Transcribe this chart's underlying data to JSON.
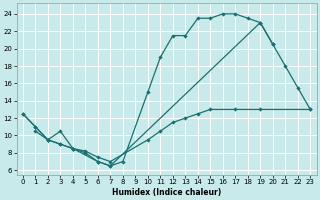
{
  "xlabel": "Humidex (Indice chaleur)",
  "bg_color": "#c8eaea",
  "grid_color": "#ffffff",
  "line_color": "#1a7070",
  "xlim": [
    -0.5,
    23.5
  ],
  "ylim": [
    5.5,
    25.2
  ],
  "xticks": [
    0,
    1,
    2,
    3,
    4,
    5,
    6,
    7,
    8,
    9,
    10,
    11,
    12,
    13,
    14,
    15,
    16,
    17,
    18,
    19,
    20,
    21,
    22,
    23
  ],
  "yticks": [
    6,
    8,
    10,
    12,
    14,
    16,
    18,
    20,
    22,
    24
  ],
  "line1_x": [
    0,
    1,
    2,
    3,
    4,
    5,
    6,
    7,
    8,
    10,
    11,
    12,
    13,
    14,
    15,
    16,
    17,
    18,
    19,
    20
  ],
  "line1_y": [
    12.5,
    11,
    9.5,
    10.5,
    8.5,
    8.0,
    7.0,
    6.5,
    7.0,
    15.0,
    19.0,
    21.5,
    21.5,
    23.5,
    23.5,
    24.0,
    24.0,
    23.5,
    23.0,
    20.5
  ],
  "line2_x": [
    0,
    1,
    2,
    3,
    4,
    6,
    7,
    19,
    20,
    21,
    22,
    23
  ],
  "line2_y": [
    12.5,
    11.0,
    9.5,
    9.0,
    8.5,
    7.0,
    6.5,
    23.0,
    20.5,
    18.0,
    15.5,
    13.0
  ],
  "line3_x": [
    1,
    2,
    3,
    4,
    5,
    6,
    7,
    10,
    11,
    12,
    13,
    14,
    15,
    17,
    19,
    23
  ],
  "line3_y": [
    10.5,
    9.5,
    9.0,
    8.5,
    8.2,
    7.5,
    7.0,
    9.5,
    10.5,
    11.5,
    12.0,
    12.5,
    13.0,
    13.0,
    13.0,
    13.0
  ]
}
